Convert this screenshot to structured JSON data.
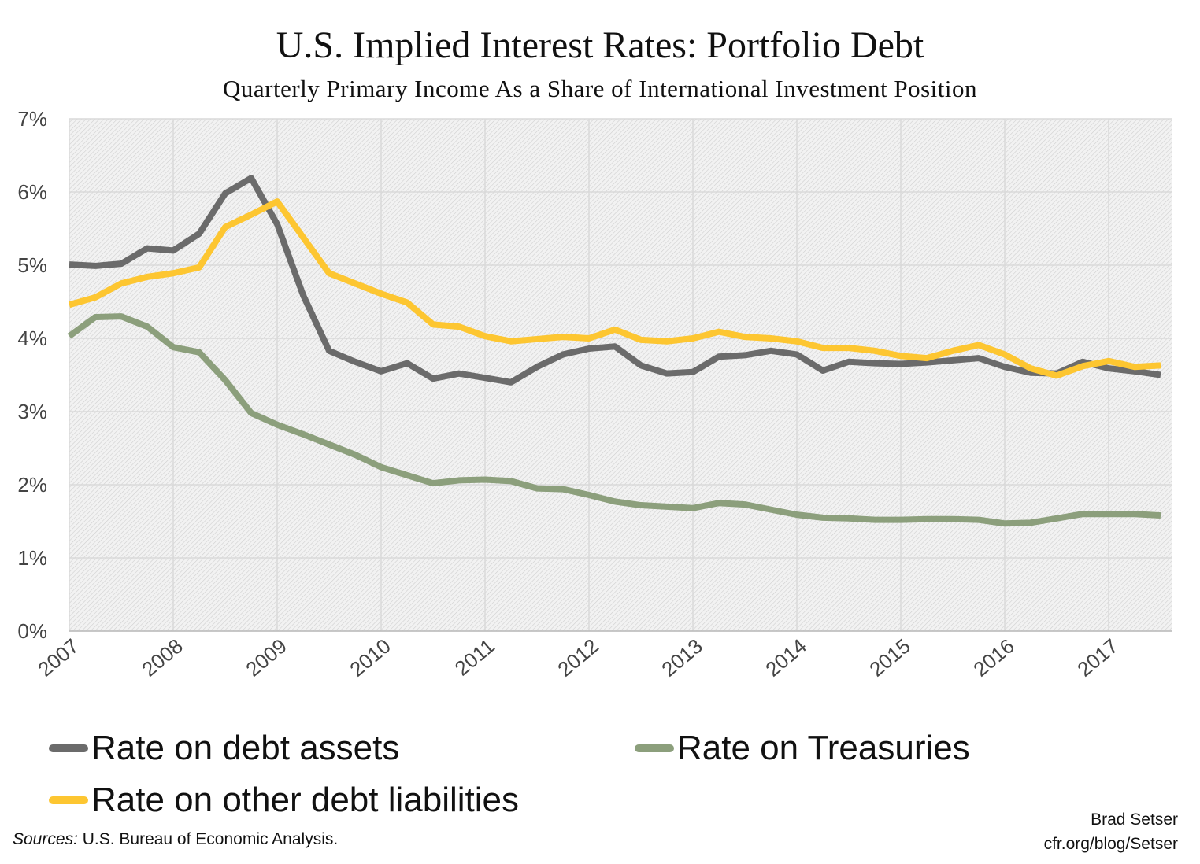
{
  "chart_data": {
    "type": "line",
    "title": "U.S. Implied Interest Rates: Portfolio Debt",
    "subtitle": "Quarterly Primary Income As a Share of International Investment Position",
    "x_start": "2007 Q1",
    "x_frequency": "quarterly",
    "x_tick_labels": [
      "2007",
      "2008",
      "2009",
      "2010",
      "2011",
      "2012",
      "2013",
      "2014",
      "2015",
      "2016",
      "2017"
    ],
    "y_tick_labels": [
      "0%",
      "1%",
      "2%",
      "3%",
      "4%",
      "5%",
      "6%",
      "7%"
    ],
    "ylim": [
      0,
      7
    ],
    "y_unit": "%",
    "grid": true,
    "legend_placement": "bottom",
    "series": [
      {
        "name": "Rate on debt assets",
        "color": "#6b6b6b",
        "values": [
          5.01,
          4.99,
          5.02,
          5.23,
          5.2,
          5.43,
          5.98,
          6.19,
          5.56,
          4.59,
          3.83,
          3.68,
          3.55,
          3.66,
          3.45,
          3.52,
          3.46,
          3.4,
          3.61,
          3.78,
          3.86,
          3.89,
          3.63,
          3.52,
          3.54,
          3.75,
          3.77,
          3.83,
          3.78,
          3.56,
          3.68,
          3.66,
          3.65,
          3.67,
          3.7,
          3.73,
          3.61,
          3.53,
          3.52,
          3.68,
          3.59,
          3.55,
          3.5
        ]
      },
      {
        "name": "Rate on Treasuries",
        "color": "#8c9f7c",
        "values": [
          4.03,
          4.29,
          4.3,
          4.16,
          3.88,
          3.81,
          3.43,
          2.98,
          2.82,
          2.69,
          2.55,
          2.41,
          2.24,
          2.13,
          2.02,
          2.06,
          2.07,
          2.05,
          1.95,
          1.94,
          1.86,
          1.77,
          1.72,
          1.7,
          1.68,
          1.75,
          1.73,
          1.66,
          1.59,
          1.55,
          1.54,
          1.52,
          1.52,
          1.53,
          1.53,
          1.52,
          1.47,
          1.48,
          1.54,
          1.6,
          1.6,
          1.6,
          1.58
        ]
      },
      {
        "name": "Rate on other debt liabilities",
        "color": "#fdc631",
        "values": [
          4.46,
          4.56,
          4.75,
          4.84,
          4.89,
          4.97,
          5.52,
          5.69,
          5.87,
          5.38,
          4.89,
          4.75,
          4.61,
          4.49,
          4.19,
          4.16,
          4.03,
          3.96,
          3.99,
          4.02,
          4.0,
          4.12,
          3.98,
          3.96,
          4.0,
          4.09,
          4.02,
          4.0,
          3.96,
          3.87,
          3.87,
          3.83,
          3.76,
          3.73,
          3.83,
          3.91,
          3.78,
          3.59,
          3.49,
          3.62,
          3.69,
          3.61,
          3.63
        ]
      }
    ]
  },
  "footer": {
    "source_label": "Sources:",
    "source_text": " U.S. Bureau of Economic Analysis.",
    "author": "Brad Setser",
    "site": "cfr.org/blog/Setser"
  }
}
